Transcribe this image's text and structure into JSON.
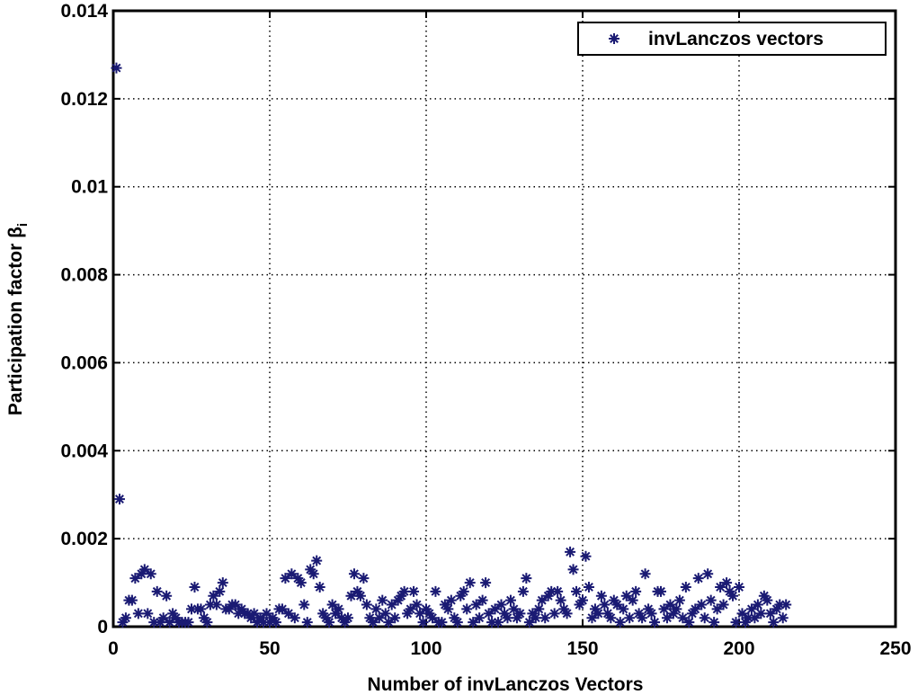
{
  "chart_data": {
    "type": "scatter",
    "xlabel": "Number of invLanczos Vectors",
    "ylabel": "Participation factor β",
    "ylabel_subscript": "i",
    "xlim": [
      0,
      250
    ],
    "xticks": [
      0,
      50,
      100,
      150,
      200,
      250
    ],
    "ylim": [
      0,
      0.014
    ],
    "yticks": [
      0,
      0.002,
      0.004,
      0.006,
      0.008,
      0.01,
      0.012,
      0.014
    ],
    "grid": true,
    "legend": "upper right",
    "series": [
      {
        "name": "invLanczos vectors",
        "color": "#1a1a73",
        "x": [
          1,
          2,
          3,
          4,
          5,
          6,
          7,
          8,
          9,
          10,
          11,
          12,
          13,
          14,
          15,
          16,
          17,
          18,
          19,
          20,
          21,
          22,
          23,
          24,
          25,
          26,
          27,
          28,
          29,
          30,
          31,
          32,
          33,
          34,
          35,
          36,
          37,
          38,
          39,
          40,
          41,
          42,
          43,
          44,
          45,
          46,
          47,
          48,
          49,
          50,
          51,
          52,
          53,
          54,
          55,
          56,
          57,
          58,
          59,
          60,
          61,
          62,
          63,
          64,
          65,
          66,
          67,
          68,
          69,
          70,
          71,
          72,
          73,
          74,
          75,
          76,
          77,
          78,
          79,
          80,
          81,
          82,
          83,
          84,
          85,
          86,
          87,
          88,
          89,
          90,
          91,
          92,
          93,
          94,
          95,
          96,
          97,
          98,
          99,
          100,
          101,
          102,
          103,
          104,
          105,
          106,
          107,
          108,
          109,
          110,
          111,
          112,
          113,
          114,
          115,
          116,
          117,
          118,
          119,
          120,
          121,
          122,
          123,
          124,
          125,
          126,
          127,
          128,
          129,
          130,
          131,
          132,
          133,
          134,
          135,
          136,
          137,
          138,
          139,
          140,
          141,
          142,
          143,
          144,
          145,
          146,
          147,
          148,
          149,
          150,
          151,
          152,
          153,
          154,
          155,
          156,
          157,
          158,
          159,
          160,
          161,
          162,
          163,
          164,
          165,
          166,
          167,
          168,
          169,
          170,
          171,
          172,
          173,
          174,
          175,
          176,
          177,
          178,
          179,
          180,
          181,
          182,
          183,
          184,
          185,
          186,
          187,
          188,
          189,
          190,
          191,
          192,
          193,
          194,
          195,
          196,
          197,
          198,
          199,
          200,
          201,
          202,
          203,
          204,
          205,
          206,
          207,
          208,
          209,
          210,
          211,
          212,
          213,
          214,
          215
        ],
        "values": [
          0.0127,
          0.0029,
          0.0001,
          0.0002,
          0.0006,
          0.0006,
          0.0011,
          0.0003,
          0.0012,
          0.0013,
          0.0003,
          0.0012,
          0.0001,
          0.0008,
          0.0001,
          0.0002,
          0.0007,
          0.0001,
          0.0003,
          0.0002,
          0.0001,
          0.0001,
          0.0001,
          0.0001,
          0.0004,
          0.0009,
          0.0004,
          0.0004,
          0.0002,
          0.0001,
          0.0005,
          0.0007,
          0.0005,
          0.0008,
          0.001,
          0.0004,
          0.0004,
          0.0005,
          0.0005,
          0.0003,
          0.0004,
          0.0003,
          0.0003,
          0.0002,
          0.0003,
          0.0001,
          0.0002,
          0.0001,
          0.0003,
          0.0001,
          0.0002,
          0.0001,
          0.0004,
          0.0004,
          0.0011,
          0.0003,
          0.0012,
          0.0002,
          0.0011,
          0.001,
          0.0005,
          0.0001,
          0.0013,
          0.0012,
          0.0015,
          0.0009,
          0.0003,
          0.0002,
          0.0001,
          0.0005,
          0.0003,
          0.0004,
          0.0002,
          0.0001,
          0.0002,
          0.0007,
          0.0012,
          0.0008,
          0.0007,
          0.0011,
          0.0005,
          0.0002,
          0.0001,
          0.0004,
          0.0002,
          0.0006,
          0.0003,
          0.0001,
          0.0005,
          0.0002,
          0.0006,
          0.0007,
          0.0008,
          0.0003,
          0.0004,
          0.0008,
          0.0005,
          0.0003,
          0.0001,
          0.0004,
          0.0003,
          0.0002,
          0.0008,
          0.0001,
          0.0001,
          0.0005,
          0.0004,
          0.0006,
          0.0002,
          0.0001,
          0.0007,
          0.0008,
          0.0004,
          0.001,
          0.0001,
          0.0005,
          0.0002,
          0.0006,
          0.001,
          0.0003,
          0.0001,
          0.0004,
          0.0001,
          0.0005,
          0.0003,
          0.0002,
          0.0006,
          0.0004,
          0.0002,
          0.0003,
          0.0008,
          0.0011,
          0.0001,
          0.0003,
          0.0002,
          0.0004,
          0.0006,
          0.0002,
          0.0007,
          0.0008,
          0.0003,
          0.0008,
          0.0006,
          0.0004,
          0.0003,
          0.0017,
          0.0013,
          0.0008,
          0.0005,
          0.0006,
          0.0016,
          0.0009,
          0.0002,
          0.0004,
          0.0003,
          0.0007,
          0.0005,
          0.0003,
          0.0002,
          0.0006,
          0.0005,
          0.0001,
          0.0004,
          0.0007,
          0.0002,
          0.0006,
          0.0008,
          0.0003,
          0.0002,
          0.0012,
          0.0004,
          0.0003,
          0.0001,
          0.0008,
          0.0008,
          0.0004,
          0.0002,
          0.0005,
          0.0003,
          0.0004,
          0.0006,
          0.0002,
          0.0009,
          0.0001,
          0.0003,
          0.0004,
          0.0011,
          0.0005,
          0.0002,
          0.0012,
          0.0006,
          0.0001,
          0.0004,
          0.0009,
          0.0005,
          0.001,
          0.0008,
          0.0007,
          0.0001,
          0.0009,
          0.0003,
          0.0001,
          0.0002,
          0.0004,
          0.0002,
          0.0005,
          0.0003,
          0.0007,
          0.0006,
          0.0003,
          0.0001,
          0.0004,
          0.0005,
          0.0002,
          0.0005
        ]
      }
    ]
  }
}
